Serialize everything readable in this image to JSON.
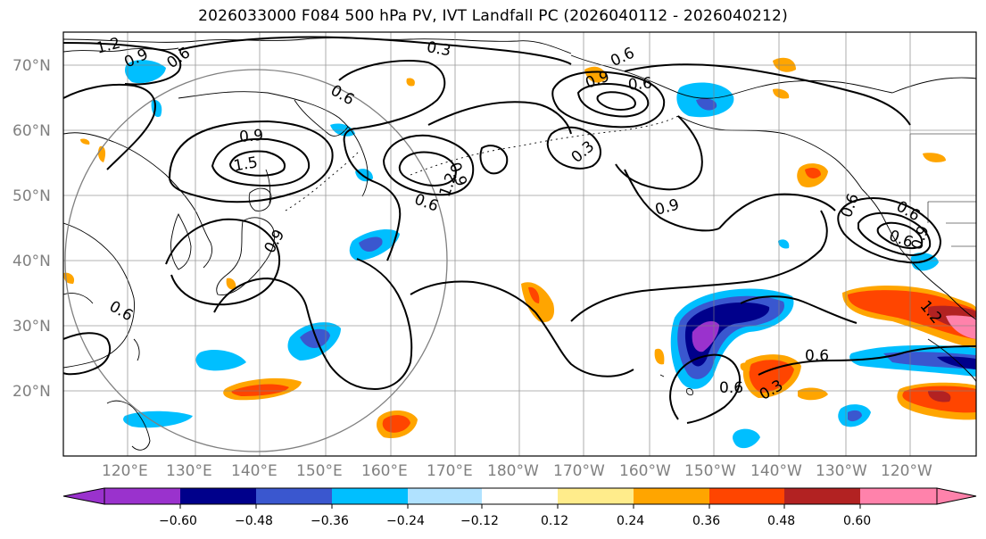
{
  "title": "2026033000 F084 500 hPa PV, IVT Landfall PC (2026040112 - 2026040212)",
  "lat_labels": [
    "70°N",
    "60°N",
    "50°N",
    "40°N",
    "30°N",
    "20°N"
  ],
  "lon_labels": [
    "120°E",
    "130°E",
    "140°E",
    "150°E",
    "160°E",
    "170°E",
    "180°W",
    "170°W",
    "160°W",
    "150°W",
    "140°W",
    "130°W",
    "120°W"
  ],
  "contour_labels": [
    "1.2",
    "0.9",
    "0.6",
    "0.3",
    "0.6",
    "0.9",
    "0.6",
    "0.9",
    "1.5",
    "0.9",
    "1.2",
    "0.6",
    "0.3",
    "0.9",
    "0.6",
    "0.6",
    "0.9",
    "0.6",
    "0.9",
    "0.6",
    "1.2",
    "0.6",
    "0.3",
    "0.6",
    "0.6"
  ],
  "colorbar": {
    "tick_labels": [
      "−0.60",
      "−0.48",
      "−0.36",
      "−0.24",
      "−0.12",
      "0.12",
      "0.24",
      "0.36",
      "0.48",
      "0.60"
    ],
    "colors": [
      "#9a32cd",
      "#00008b",
      "#3a57cf",
      "#00bfff",
      "#b0e2ff",
      "#ffffff",
      "#ffec8b",
      "#ffa500",
      "#ff4500",
      "#b22222",
      "#ff82ab"
    ]
  },
  "colors": {
    "land": "#000000",
    "grid": "#808080",
    "contour": "#000000"
  }
}
